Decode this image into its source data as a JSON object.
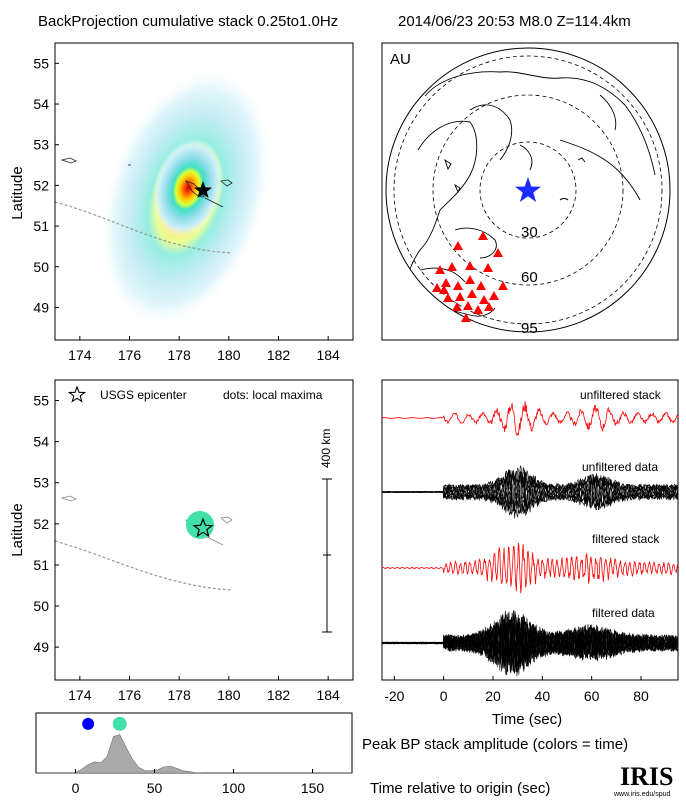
{
  "header": {
    "left_title": "BackProjection cumulative stack 0.25to1.0Hz",
    "right_title": "2014/06/23 20:53   M8.0  Z=114.4km"
  },
  "map_top": {
    "ylabel": "Latitude",
    "xticks": [
      174,
      176,
      178,
      180,
      182,
      184
    ],
    "yticks": [
      49,
      50,
      51,
      52,
      53,
      54,
      55
    ]
  },
  "map_bottom": {
    "ylabel": "Latitude",
    "xticks": [
      174,
      176,
      178,
      180,
      182,
      184
    ],
    "yticks": [
      49,
      50,
      51,
      52,
      53,
      54,
      55
    ],
    "legend_star": "USGS epicenter",
    "legend_dots": "dots: local maxima",
    "scale_label": "400 km",
    "maxima_color": "#40e0a8"
  },
  "globe": {
    "network_label": "AU",
    "ring_labels": [
      "30",
      "60",
      "95"
    ],
    "station_color": "#ff0000",
    "epicenter_color": "#1a2bff"
  },
  "traces": {
    "labels": [
      "unfiltered stack",
      "unfiltered data",
      "filtered stack",
      "filtered data"
    ],
    "xticks": [
      -20,
      0,
      20,
      40,
      60,
      80
    ],
    "xlabel": "Time (sec)",
    "stack_color": "#ff0000",
    "data_color": "#000000"
  },
  "peak_panel": {
    "title": "Peak BP stack amplitude (colors = time)",
    "xlabel": "Time relative to origin (sec)",
    "xticks": [
      0,
      50,
      100,
      150
    ],
    "fill_color": "#a9a9a9",
    "dot_colors": [
      "#0000ff",
      "#40e0a8"
    ]
  },
  "logo": {
    "name": "IRIS",
    "url_text": "www.iris.edu/spud"
  },
  "chart_data": [
    {
      "type": "heatmap",
      "name_ref": "backprojection-cumulative-stack",
      "title": "BackProjection cumulative stack 0.25to1.0Hz",
      "xlabel": "",
      "ylabel": "Latitude",
      "xlim": [
        173,
        185
      ],
      "ylim": [
        48.2,
        55.5
      ],
      "peak": [
        178.5,
        51.95
      ],
      "epicenter": [
        178.75,
        51.8
      ],
      "colormap": [
        "#ffffff",
        "#c8eef8",
        "#8fdde8",
        "#40e0c8",
        "#ffff00",
        "#ff9900",
        "#d10000"
      ]
    },
    {
      "type": "scatter",
      "name_ref": "local-maxima-map",
      "xlim": [
        173,
        185
      ],
      "ylim": [
        48.2,
        55.5
      ],
      "epicenter": [
        178.75,
        51.8
      ],
      "maxima": [
        {
          "x": 178.45,
          "y": 51.9
        }
      ],
      "scale_km": 400
    },
    {
      "type": "line",
      "name_ref": "waveform-traces",
      "xlabel": "Time (sec)",
      "xlim": [
        -25,
        95
      ],
      "series": [
        {
          "name": "unfiltered stack"
        },
        {
          "name": "unfiltered data"
        },
        {
          "name": "filtered stack"
        },
        {
          "name": "filtered data"
        }
      ]
    },
    {
      "type": "area",
      "name_ref": "peak-bp-stack-amplitude",
      "title": "Peak BP stack amplitude (colors = time)",
      "xlabel": "Time relative to origin (sec)",
      "xlim": [
        -25,
        175
      ],
      "x": [
        -25,
        -2,
        0,
        4,
        8,
        12,
        16,
        20,
        24,
        28,
        32,
        36,
        40,
        44,
        48,
        52,
        56,
        60,
        64,
        68,
        72,
        76,
        80,
        175
      ],
      "values": [
        0,
        0,
        0.02,
        0.08,
        0.18,
        0.24,
        0.22,
        0.35,
        0.78,
        0.82,
        0.55,
        0.3,
        0.12,
        0.05,
        0.05,
        0.07,
        0.13,
        0.15,
        0.1,
        0.05,
        0.03,
        0.01,
        0,
        0
      ],
      "dots": [
        {
          "x": 8,
          "y": 1.05
        },
        {
          "x": 28,
          "y": 1.05
        }
      ]
    }
  ]
}
